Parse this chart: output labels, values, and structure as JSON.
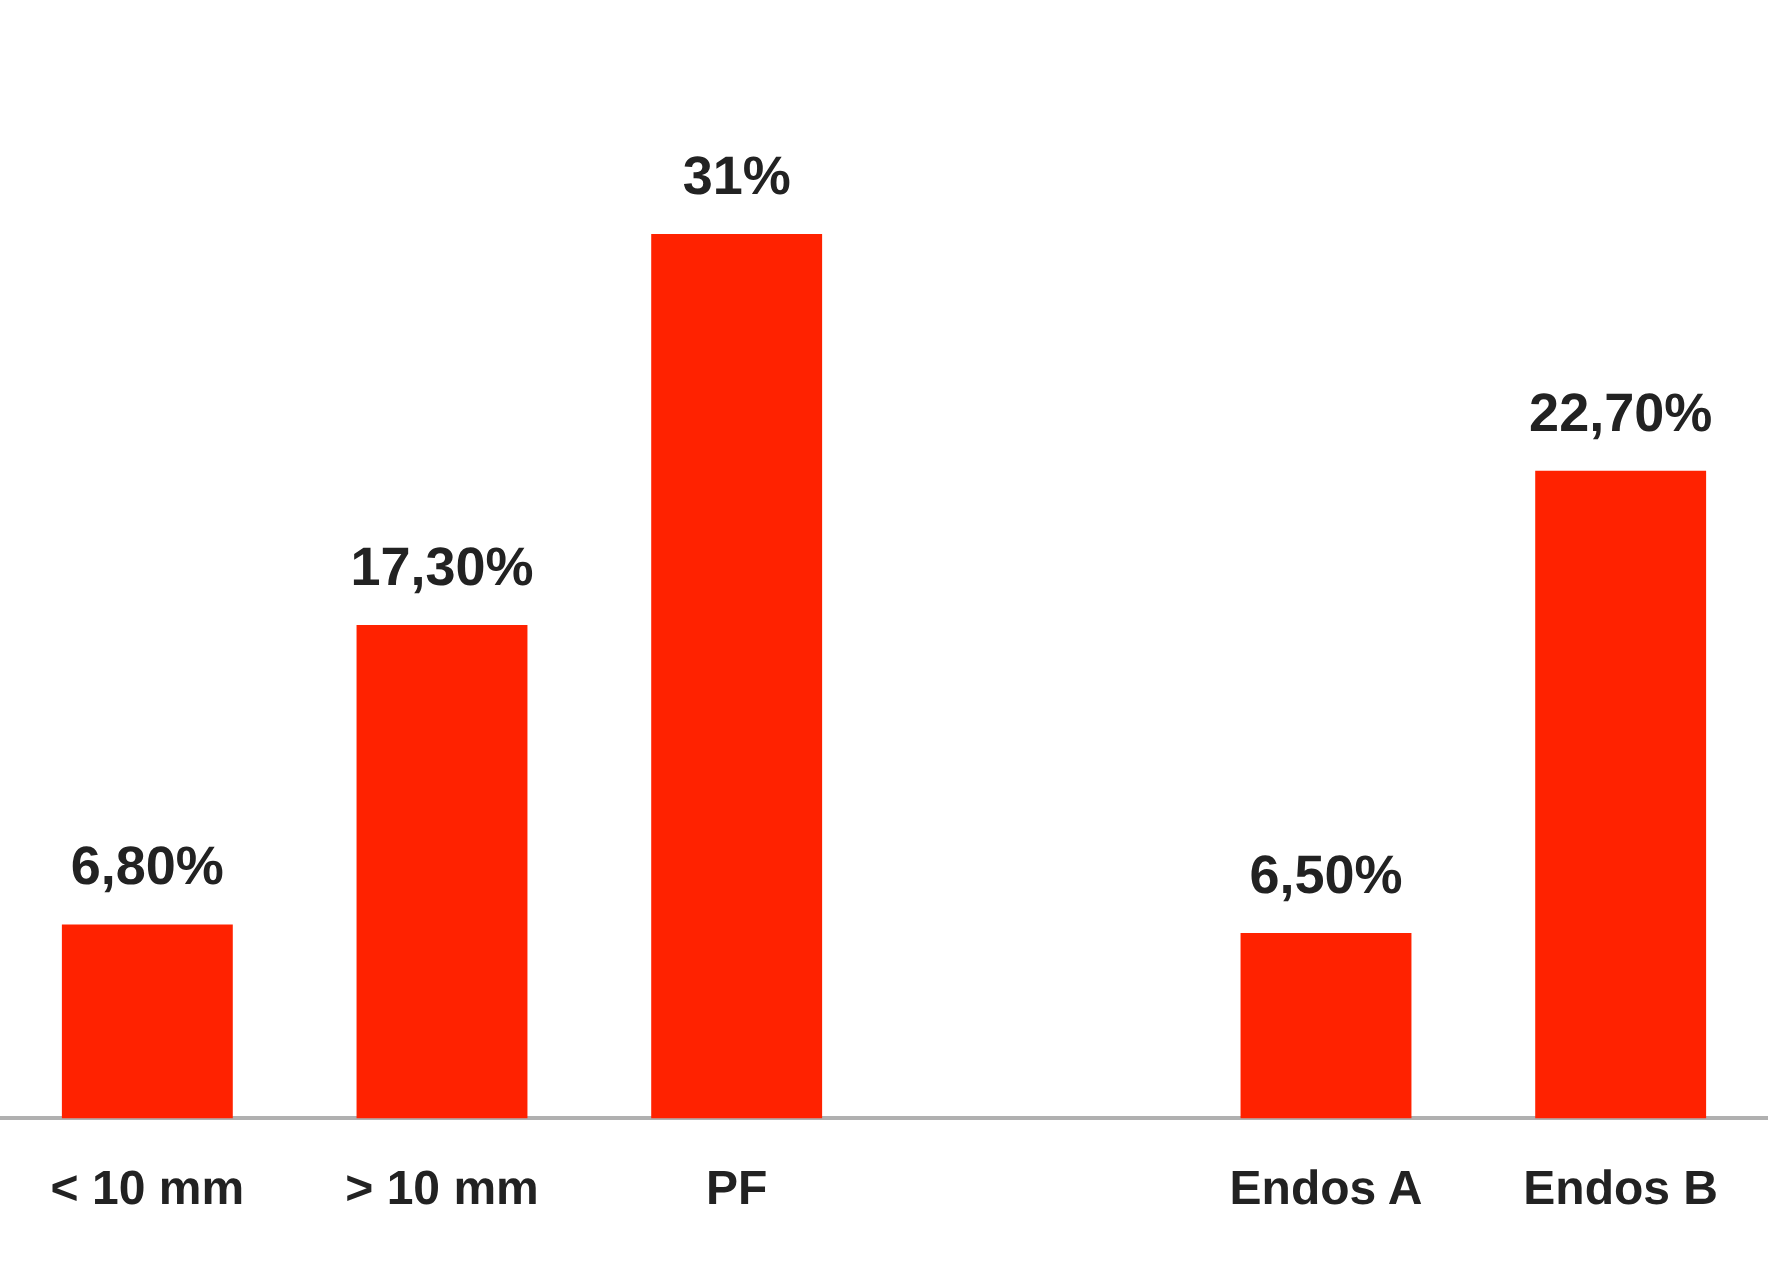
{
  "chart_data": {
    "type": "bar",
    "categories": [
      "< 10 mm",
      "> 10 mm",
      "PF",
      null,
      "Endos A",
      "Endos B"
    ],
    "values": [
      6.8,
      17.3,
      31,
      null,
      6.5,
      22.7
    ],
    "value_labels": [
      "6,80%",
      "17,30%",
      "31%",
      null,
      "6,50%",
      "22,70%"
    ],
    "color": "#ff2200",
    "grid": false,
    "legend": false,
    "tick_labels": "x"
  }
}
